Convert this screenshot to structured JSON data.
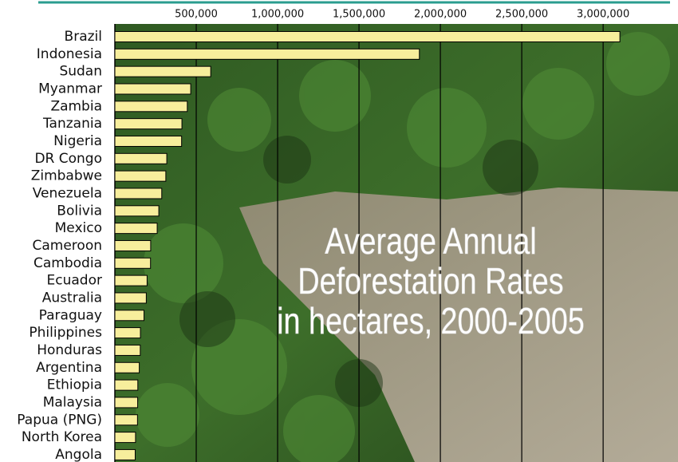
{
  "chart_data": {
    "type": "hbar",
    "title": [
      "Average Annual",
      "Deforestation Rates",
      "in hectares, 2000-2005"
    ],
    "categories": [
      "Brazil",
      "Indonesia",
      "Sudan",
      "Myanmar",
      "Zambia",
      "Tanzania",
      "Nigeria",
      "DR Congo",
      "Zimbabwe",
      "Venezuela",
      "Bolivia",
      "Mexico",
      "Cameroon",
      "Cambodia",
      "Ecuador",
      "Australia",
      "Paraguay",
      "Philippines",
      "Honduras",
      "Argentina",
      "Ethiopia",
      "Malaysia",
      "Papua (PNG)",
      "North Korea",
      "Angola"
    ],
    "values": [
      3103000,
      1871000,
      589000,
      466000,
      445000,
      412000,
      410000,
      319000,
      313000,
      288000,
      270000,
      260000,
      220000,
      219000,
      198000,
      193000,
      179000,
      157000,
      156000,
      150000,
      141000,
      140000,
      139000,
      127000,
      125000
    ],
    "color": "#f7ee9c",
    "xlim": [
      0,
      3460000
    ],
    "xticks": [
      {
        "value": 500000,
        "label": "500,000"
      },
      {
        "value": 1000000,
        "label": "1,000,000"
      },
      {
        "value": 1500000,
        "label": "1,500,000"
      },
      {
        "value": 2000000,
        "label": "2,000,000"
      },
      {
        "value": 2500000,
        "label": "2,500,000"
      },
      {
        "value": 3000000,
        "label": "3,000,000"
      }
    ],
    "grid": true
  }
}
